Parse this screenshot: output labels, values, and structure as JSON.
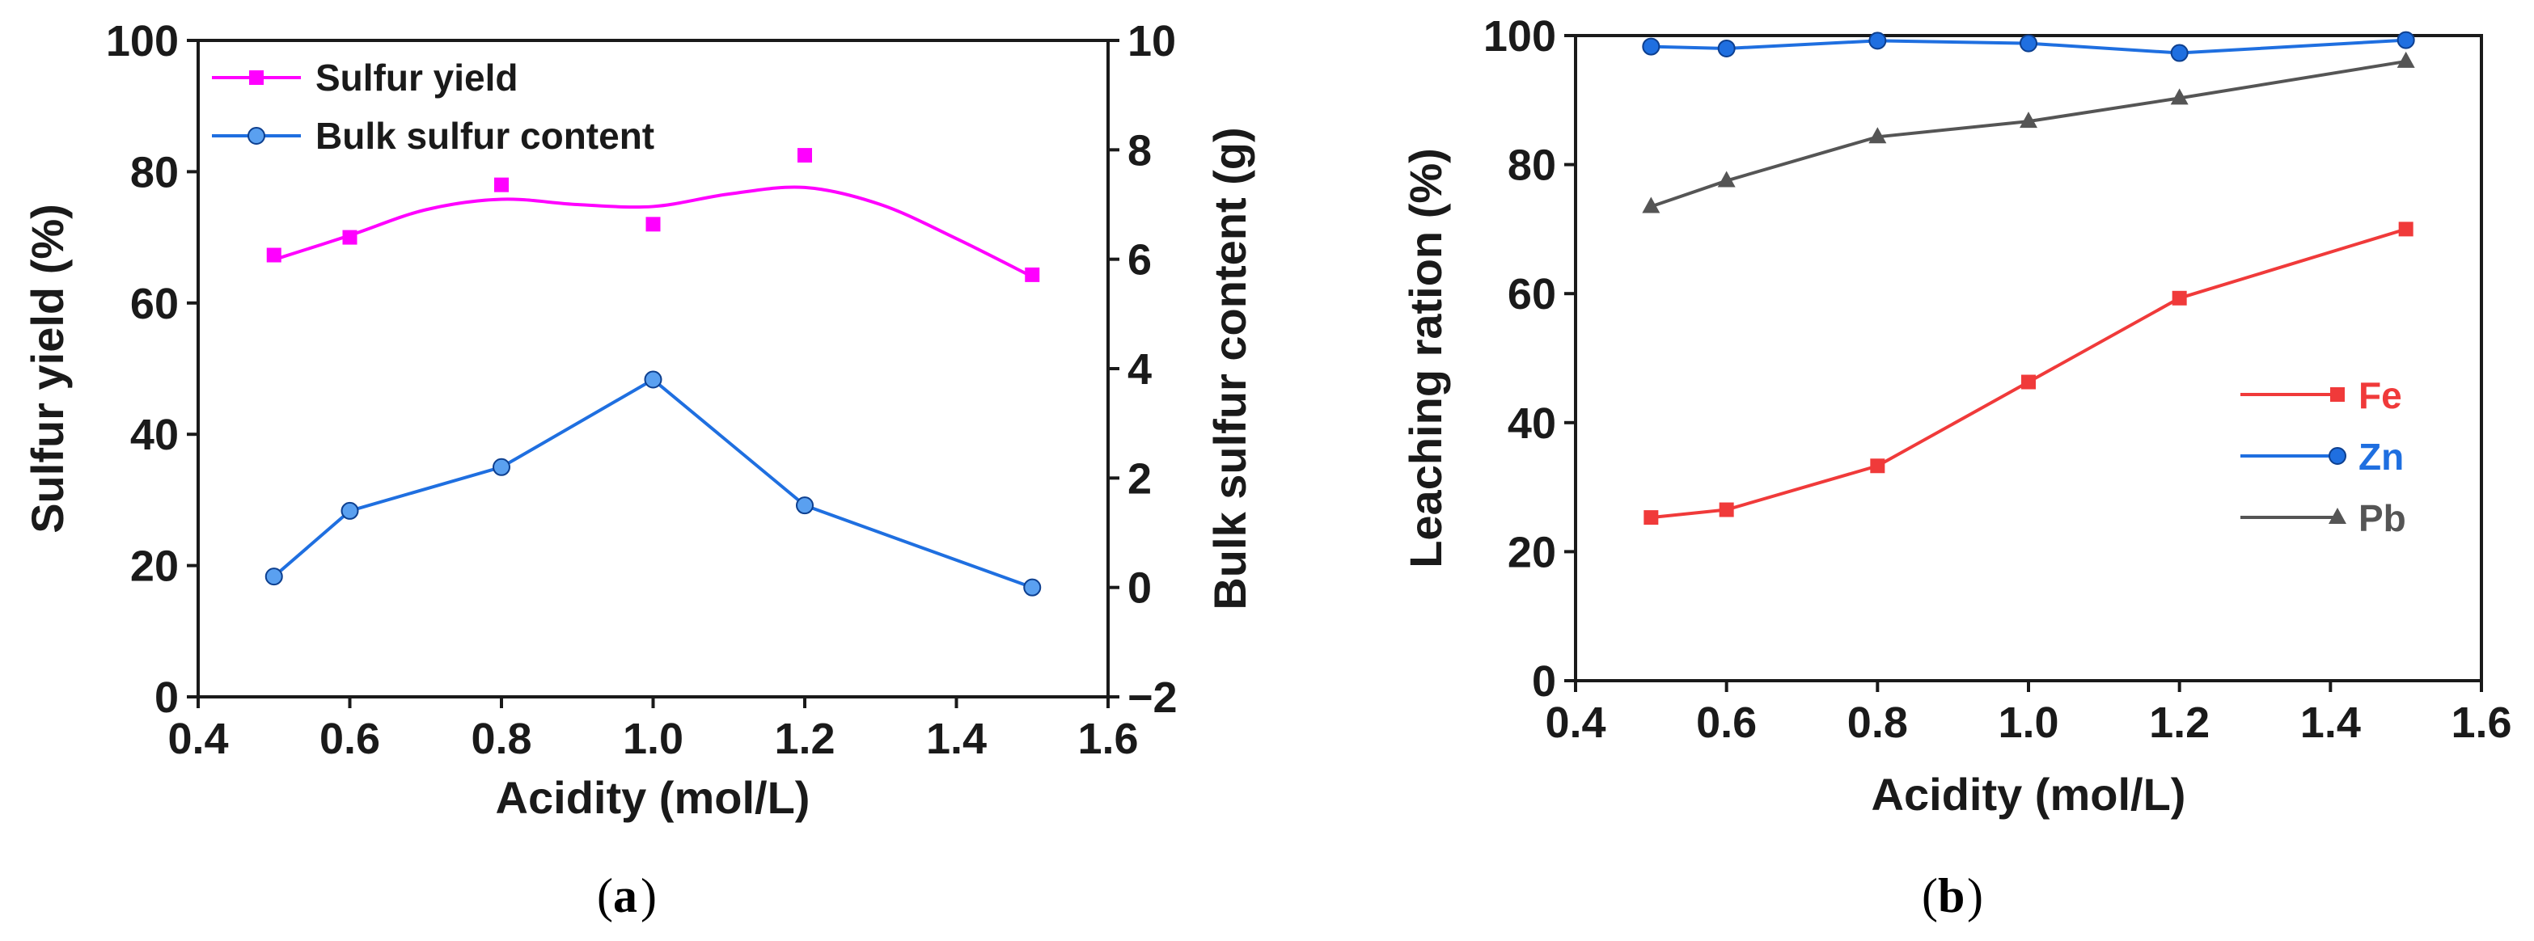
{
  "chart_data": [
    {
      "type": "scatter",
      "panel_label": "a",
      "title": "",
      "xlabel": "Acidity (mol/L)",
      "ylabel": "Sulfur yield (%)",
      "y2label": "Bulk sulfur content (g)",
      "xlim": [
        0.4,
        1.6
      ],
      "ylim": [
        0,
        100
      ],
      "y2lim": [
        -2,
        10
      ],
      "xticks": [
        "0.4",
        "0.6",
        "0.8",
        "1.0",
        "1.2",
        "1.4",
        "1.6"
      ],
      "yticks": [
        "0",
        "20",
        "40",
        "60",
        "80",
        "100"
      ],
      "y2ticks": [
        "−2",
        "0",
        "2",
        "4",
        "6",
        "8",
        "10"
      ],
      "legend_position": "top-left",
      "series": [
        {
          "name": "Sulfur yield",
          "color": "#ff00ff",
          "marker": "square",
          "axis": "left",
          "style": "points with smooth fit",
          "x": [
            0.5,
            0.6,
            0.8,
            1.0,
            1.2,
            1.5
          ],
          "values": [
            67.3,
            70.0,
            78.0,
            72.0,
            82.5,
            64.3
          ]
        },
        {
          "name": "Bulk sulfur content",
          "color": "#1f6fe0",
          "marker": "circle",
          "axis": "right",
          "style": "line",
          "x": [
            0.5,
            0.6,
            0.8,
            1.0,
            1.2,
            1.5
          ],
          "values": [
            0.2,
            1.4,
            2.2,
            3.8,
            1.5,
            0.0
          ]
        }
      ]
    },
    {
      "type": "line",
      "panel_label": "b",
      "title": "",
      "xlabel": "Acidity (mol/L)",
      "ylabel": "Leaching ration (%)",
      "xlim": [
        0.4,
        1.6
      ],
      "ylim": [
        0,
        100
      ],
      "xticks": [
        "0.4",
        "0.6",
        "0.8",
        "1.0",
        "1.2",
        "1.4",
        "1.6"
      ],
      "yticks": [
        "0",
        "20",
        "40",
        "60",
        "80",
        "100"
      ],
      "legend_position": "center-right",
      "series": [
        {
          "name": "Fe",
          "color": "#f03a3a",
          "marker": "square",
          "x": [
            0.5,
            0.6,
            0.8,
            1.0,
            1.2,
            1.5
          ],
          "values": [
            25.3,
            26.5,
            33.3,
            46.3,
            59.3,
            70.0
          ]
        },
        {
          "name": "Zn",
          "color": "#1f6fe0",
          "marker": "circle",
          "x": [
            0.5,
            0.6,
            0.8,
            1.0,
            1.2,
            1.5
          ],
          "values": [
            98.3,
            98.0,
            99.2,
            98.8,
            97.3,
            99.3
          ]
        },
        {
          "name": "Pb",
          "color": "#555555",
          "marker": "triangle",
          "x": [
            0.5,
            0.6,
            0.8,
            1.0,
            1.2,
            1.5
          ],
          "values": [
            73.5,
            77.5,
            84.3,
            86.7,
            90.3,
            96.0
          ]
        }
      ]
    }
  ]
}
